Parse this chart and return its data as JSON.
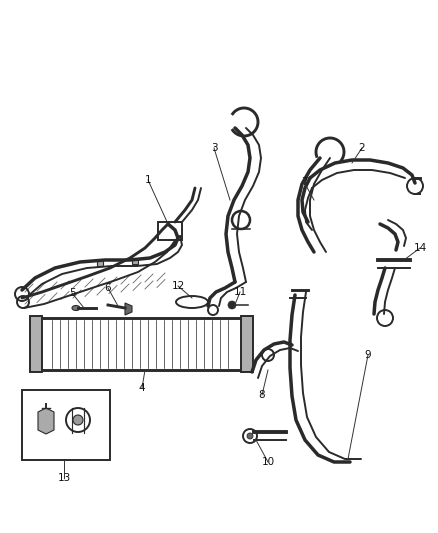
{
  "background_color": "#ffffff",
  "fig_width": 4.38,
  "fig_height": 5.33,
  "dpi": 100,
  "line_color": "#2a2a2a",
  "line_color2": "#888888",
  "label_fontsize": 7.5
}
